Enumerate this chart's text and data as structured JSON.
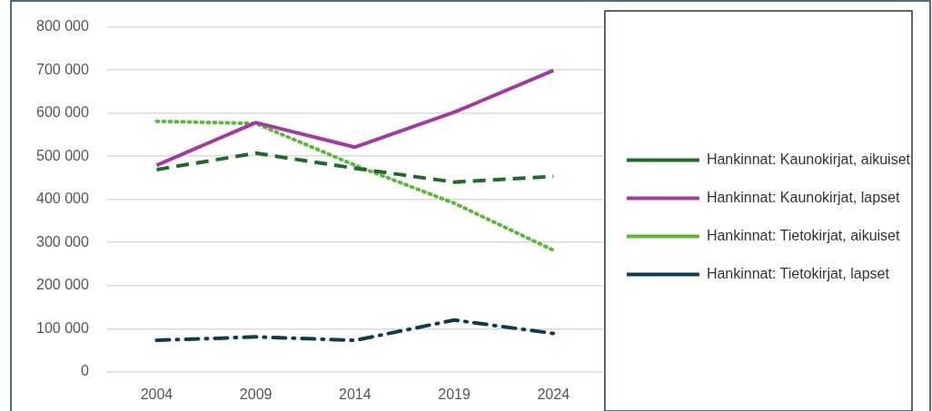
{
  "chart_data": {
    "type": "line",
    "categories": [
      "2004",
      "2009",
      "2014",
      "2019",
      "2024"
    ],
    "series": [
      {
        "name": "Hankinnat: Kaunokirjat, aikuiset",
        "color": "#1e6b2a",
        "line_style": "dashed",
        "values": [
          469000,
          507000,
          472000,
          440000,
          453000
        ]
      },
      {
        "name": "Hankinnat: Kaunokirjat, lapset",
        "color": "#a23aa0",
        "line_style": "solid",
        "values": [
          479000,
          578000,
          521000,
          602000,
          699000
        ]
      },
      {
        "name": "Hankinnat: Tietokirjat, aikuiset",
        "color": "#5cb83a",
        "line_style": "dotted",
        "values": [
          581000,
          576000,
          479000,
          391000,
          282000
        ]
      },
      {
        "name": "Hankinnat: Tietokirjat, lapset",
        "color": "#0f3a4f",
        "line_style": "dashdot",
        "values": [
          73000,
          81000,
          73000,
          120000,
          89000
        ]
      }
    ],
    "ylim": [
      0,
      800000
    ],
    "yticks": [
      {
        "value": 0,
        "label": "0"
      },
      {
        "value": 100000,
        "label": "100 000"
      },
      {
        "value": 200000,
        "label": "200 000"
      },
      {
        "value": 300000,
        "label": "300 000"
      },
      {
        "value": 400000,
        "label": "400 000"
      },
      {
        "value": 500000,
        "label": "500 000"
      },
      {
        "value": 600000,
        "label": "600 000"
      },
      {
        "value": 700000,
        "label": "700 000"
      },
      {
        "value": 800000,
        "label": "800 000"
      }
    ],
    "grid": "y",
    "legend": "right",
    "marker": "none"
  }
}
